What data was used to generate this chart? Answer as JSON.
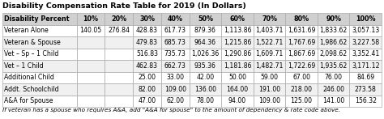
{
  "title": "Disability Compensation Rate Table for 2019 (In Dollars)",
  "col_headers": [
    "Disability Percent",
    "10%",
    "20%",
    "30%",
    "40%",
    "50%",
    "60%",
    "70%",
    "80%",
    "90%",
    "100%"
  ],
  "rows": [
    [
      "Veteran Alone",
      "140.05",
      "276.84",
      "428.83",
      "617.73",
      "879.36",
      "1,113.86",
      "1,403.71",
      "1,631.69",
      "1,833.62",
      "3,057.13"
    ],
    [
      "Veteran & Spouse",
      "",
      "",
      "479.83",
      "685.73",
      "964.36",
      "1,215.86",
      "1,522.71",
      "1,767.69",
      "1,986.62",
      "3,227.58"
    ],
    [
      "Vet – Sp – 1 Child",
      "",
      "",
      "516.83",
      "735.73",
      "1,026.36",
      "1,290.86",
      "1,609.71",
      "1,867.69",
      "2,098.62",
      "3,352.41"
    ],
    [
      "Vet – 1 Child",
      "",
      "",
      "462.83",
      "662.73",
      "935.36",
      "1,181.86",
      "1,482.71",
      "1,722.69",
      "1,935.62",
      "3,171.12"
    ],
    [
      "Additional Child",
      "",
      "",
      "25.00",
      "33.00",
      "42.00",
      "50.00",
      "59.00",
      "67.00",
      "76.00",
      "84.69"
    ],
    [
      "Addt. Schoolchild",
      "",
      "",
      "82.00",
      "109.00",
      "136.00",
      "164.00",
      "191.00",
      "218.00",
      "246.00",
      "273.58"
    ],
    [
      "A&A for Spouse",
      "",
      "",
      "47.00",
      "62.00",
      "78.00",
      "94.00",
      "109.00",
      "125.00",
      "141.00",
      "156.32"
    ]
  ],
  "footer": "If veteran has a spouse who requires A&A, add \"A&A for spouse\" to the amount of dependency & rate code above.",
  "header_bg": "#d0d0d0",
  "row_bg_even": "#ffffff",
  "row_bg_odd": "#f0f0f0",
  "border_color": "#aaaaaa",
  "title_fontsize": 6.8,
  "header_fontsize": 5.8,
  "cell_fontsize": 5.6,
  "footer_fontsize": 5.2,
  "col_widths_raw": [
    1.9,
    0.72,
    0.72,
    0.72,
    0.72,
    0.82,
    0.82,
    0.82,
    0.82,
    0.82,
    0.82
  ]
}
